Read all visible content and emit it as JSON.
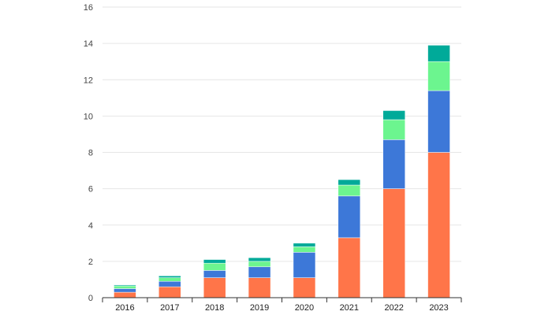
{
  "chart_data": {
    "type": "bar",
    "stacked": true,
    "title": "",
    "xlabel": "",
    "ylabel": "",
    "categories": [
      "2016",
      "2017",
      "2018",
      "2019",
      "2020",
      "2021",
      "2022",
      "2023"
    ],
    "ylim": [
      0,
      16
    ],
    "yticks": [
      "0",
      "2",
      "4",
      "6",
      "8",
      "10",
      "12",
      "14",
      "16"
    ],
    "grid": true,
    "legend": "none",
    "series": [
      {
        "color": "#ff7549",
        "values": [
          0.3,
          0.6,
          1.1,
          1.1,
          1.1,
          3.3,
          6.0,
          8.0
        ]
      },
      {
        "color": "#3d78d8",
        "values": [
          0.2,
          0.3,
          0.4,
          0.6,
          1.4,
          2.3,
          2.7,
          3.4
        ]
      },
      {
        "color": "#6cf58f",
        "values": [
          0.15,
          0.2,
          0.4,
          0.3,
          0.3,
          0.6,
          1.1,
          1.6
        ]
      },
      {
        "color": "#00aa99",
        "values": [
          0.05,
          0.1,
          0.2,
          0.2,
          0.2,
          0.3,
          0.5,
          0.9
        ]
      }
    ]
  }
}
